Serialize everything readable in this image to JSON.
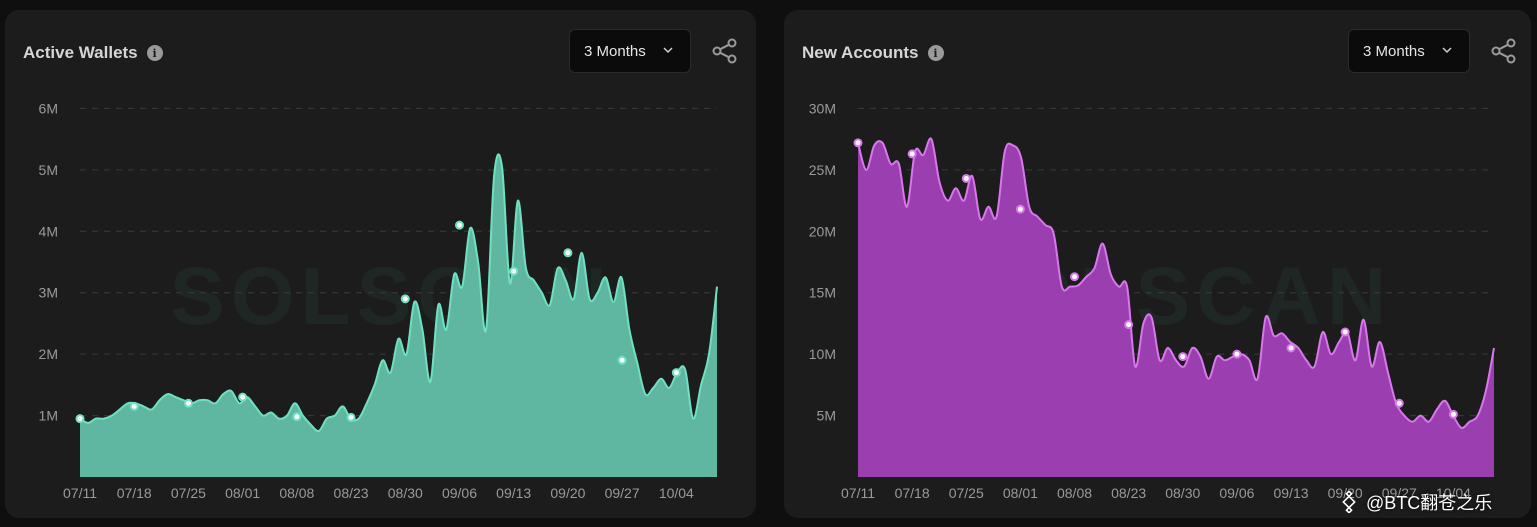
{
  "panels": [
    {
      "title": "Active Wallets",
      "range": "3 Months",
      "watermark": "SOLSCAN",
      "accent": "#6fe0c0",
      "fill": "#5fb7a2"
    },
    {
      "title": "New Accounts",
      "range": "3 Months",
      "watermark": "SOLSCAN",
      "accent": "#d977ec",
      "fill": "#9b3eb0"
    }
  ],
  "credit": "@BTC翻苍之乐",
  "chart_data": [
    {
      "type": "area",
      "title": "Active Wallets",
      "x_tick_labels": [
        "07/11",
        "07/18",
        "07/25",
        "08/01",
        "08/08",
        "08/23",
        "08/30",
        "09/06",
        "09/13",
        "09/20",
        "09/27",
        "10/04"
      ],
      "y_tick_labels": [
        "1M",
        "2M",
        "3M",
        "4M",
        "5M",
        "6M"
      ],
      "ylim": [
        0,
        6.3
      ],
      "unit": "M",
      "grid": "horizontal dashed",
      "series": [
        {
          "values": [
            0.95,
            0.88,
            0.95,
            0.95,
            1.0,
            1.1,
            1.2,
            1.2,
            1.15,
            1.1,
            1.25,
            1.35,
            1.3,
            1.25,
            1.2,
            1.25,
            1.25,
            1.2,
            1.35,
            1.4,
            1.2,
            1.3,
            1.15,
            1.0,
            1.05,
            0.95,
            1.0,
            1.2,
            1.0,
            0.85,
            0.75,
            0.95,
            1.0,
            1.15,
            0.95,
            0.95,
            1.2,
            1.5,
            1.9,
            1.7,
            2.25,
            2.0,
            2.85,
            2.4,
            1.55,
            2.8,
            2.4,
            3.3,
            3.1,
            4.05,
            3.5,
            2.4,
            4.9,
            5.05,
            3.15,
            4.5,
            3.4,
            3.2,
            3.0,
            2.8,
            3.4,
            3.2,
            2.9,
            3.65,
            2.9,
            3.0,
            3.25,
            2.85,
            3.25,
            2.4,
            1.85,
            1.35,
            1.45,
            1.6,
            1.45,
            1.7,
            1.75,
            0.95,
            1.5,
            2.0,
            3.1
          ]
        }
      ],
      "markers": [
        0.95,
        1.15,
        1.2,
        1.3,
        0.98,
        0.97,
        2.9,
        4.1,
        3.35,
        3.65,
        1.9,
        1.7
      ]
    },
    {
      "type": "area",
      "title": "New Accounts",
      "x_tick_labels": [
        "07/11",
        "07/18",
        "07/25",
        "08/01",
        "08/08",
        "08/23",
        "08/30",
        "09/06",
        "09/13",
        "09/20",
        "09/27",
        "10/04"
      ],
      "y_tick_labels": [
        "5M",
        "10M",
        "15M",
        "20M",
        "25M",
        "30M"
      ],
      "ylim": [
        0,
        31.5
      ],
      "unit": "M",
      "grid": "horizontal dashed",
      "series": [
        {
          "values": [
            27.2,
            25.0,
            27.0,
            27.2,
            25.5,
            25.5,
            22.0,
            26.5,
            26.2,
            27.5,
            24.0,
            22.5,
            23.5,
            22.5,
            24.5,
            21.0,
            22.0,
            21.2,
            26.5,
            27.0,
            26.0,
            22.0,
            21.2,
            20.5,
            19.8,
            15.5,
            15.5,
            15.6,
            16.3,
            17.0,
            19.0,
            16.5,
            15.5,
            15.5,
            9.0,
            12.5,
            13.0,
            9.5,
            10.5,
            9.5,
            9.0,
            10.5,
            9.8,
            8.0,
            9.8,
            9.5,
            9.8,
            10.0,
            9.5,
            8.0,
            13.0,
            11.5,
            11.7,
            11.0,
            10.5,
            9.5,
            9.0,
            11.8,
            10.0,
            11.0,
            11.8,
            9.5,
            12.8,
            9.0,
            11.0,
            8.5,
            6.0,
            5.0,
            4.5,
            5.0,
            4.5,
            5.5,
            6.2,
            5.0,
            4.0,
            4.5,
            5.0,
            7.0,
            10.5
          ]
        }
      ],
      "markers": [
        27.2,
        26.3,
        24.3,
        21.8,
        16.3,
        12.4,
        9.8,
        10.0,
        10.5,
        11.8,
        6.0,
        5.1
      ]
    }
  ]
}
